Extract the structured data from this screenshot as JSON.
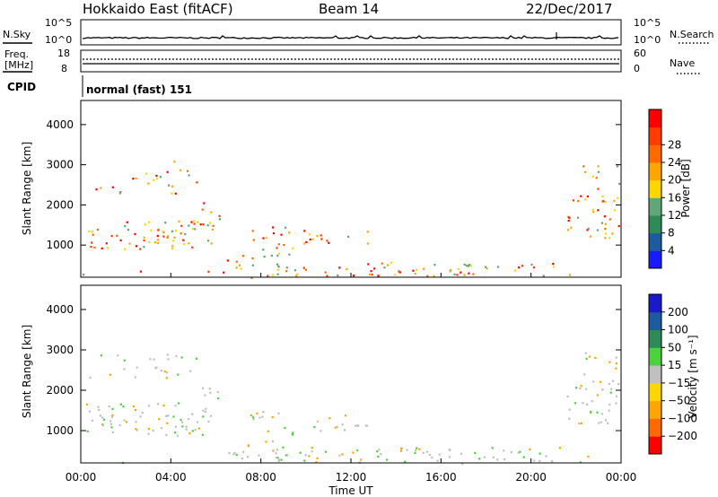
{
  "header": {
    "station": "Hokkaido East (fitACF)",
    "beam": "Beam 14",
    "date": "22/Dec/2017"
  },
  "noise_panel": {
    "left_label": "N.Sky",
    "right_label": "N.Search",
    "left_ticks": [
      "10^5",
      "10^0"
    ],
    "right_ticks": [
      "10^5",
      "10^0"
    ]
  },
  "freq_panel": {
    "left_label_line1": "Freq.",
    "left_label_line2": "[MHz]",
    "left_ticks": [
      "18",
      "8"
    ],
    "right_label": "Nave",
    "right_ticks": [
      "60",
      "0"
    ]
  },
  "cpid_panel": {
    "label": "CPID",
    "mode": "normal (fast) 151"
  },
  "chart_data": [
    {
      "type": "heatmap",
      "name": "power",
      "ylabel": "Slant Range [km]",
      "ylim": [
        200,
        4600
      ],
      "yticks": [
        "1000",
        "2000",
        "3000",
        "4000"
      ],
      "colorbar": {
        "label": "Power [dB]",
        "ticks": [
          "4",
          "8",
          "12",
          "16",
          "20",
          "24",
          "28"
        ],
        "colors": [
          "#1a1aff",
          "#1e5aa0",
          "#2e8b57",
          "#5fa777",
          "#ffd600",
          "#ffa500",
          "#ff6a00",
          "#ff3b00",
          "#ff0000"
        ]
      }
    },
    {
      "type": "heatmap",
      "name": "velocity",
      "ylabel": "Slant Range [km]",
      "ylim": [
        200,
        4600
      ],
      "yticks": [
        "1000",
        "2000",
        "3000",
        "4000"
      ],
      "colorbar": {
        "label": "Velocity [m s⁻¹]",
        "ticks": [
          "200",
          "100",
          "50",
          "15",
          "−15",
          "−50",
          "−100",
          "−200"
        ],
        "colors": [
          "#1a1acc",
          "#1e5aa0",
          "#2e8b57",
          "#4bd23c",
          "#c0c0c0",
          "#ffd600",
          "#ffa500",
          "#ff6a00",
          "#ff0000"
        ]
      }
    }
  ],
  "time_axis": {
    "label": "Time UT",
    "ticks": [
      "00:00",
      "04:00",
      "08:00",
      "12:00",
      "16:00",
      "20:00",
      "00:00"
    ]
  }
}
